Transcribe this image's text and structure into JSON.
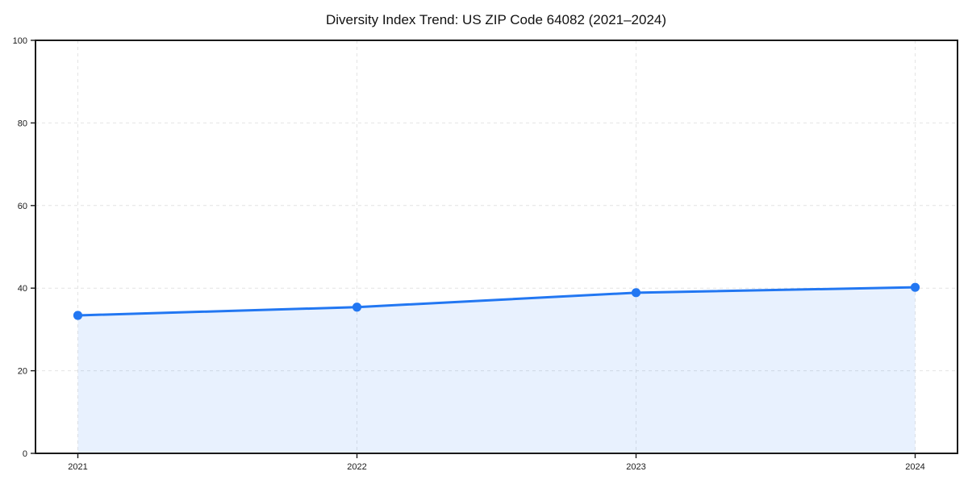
{
  "chart_data": {
    "type": "area",
    "title": "Diversity Index Trend: US ZIP Code 64082 (2021–2024)",
    "x": [
      2021,
      2022,
      2023,
      2024
    ],
    "x_tick_labels": [
      "2021",
      "2022",
      "2023",
      "2024"
    ],
    "series": [
      {
        "name": "Diversity Index",
        "values": [
          33.4,
          35.4,
          38.9,
          40.2
        ]
      }
    ],
    "xlabel": "",
    "ylabel": "",
    "ylim": [
      0,
      100
    ],
    "y_ticks": [
      0,
      20,
      40,
      60,
      80,
      100
    ],
    "y_tick_labels": [
      "0",
      "20",
      "40",
      "60",
      "80",
      "100"
    ],
    "grid": true,
    "grid_style": "dashed",
    "legend_position": "none",
    "marker": "circle",
    "colors": {
      "line": "#2277f2",
      "marker": "#2277f2",
      "fill": "rgba(34,119,242,0.10)",
      "grid": "#e4e4e4",
      "axis": "#1a1a1a",
      "tick_text": "#1a1a1a",
      "title_text": "#111111",
      "background": "#ffffff"
    }
  }
}
